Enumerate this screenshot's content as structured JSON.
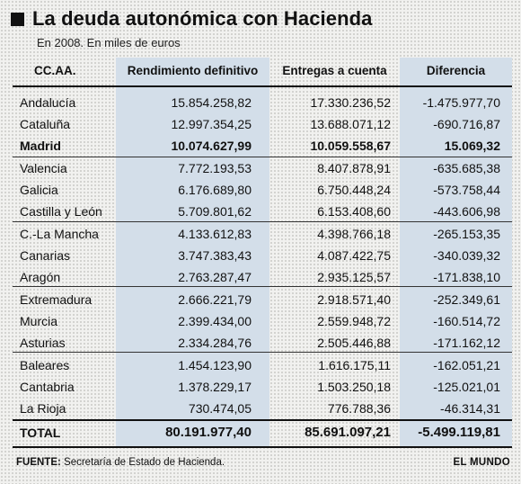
{
  "header": {
    "title": "La deuda autonómica con Hacienda",
    "subtitle": "En 2008. En miles de euros"
  },
  "columns": {
    "region": "CC.AA.",
    "rendimiento": "Rendimiento definitivo",
    "entregas": "Entregas a cuenta",
    "diferencia": "Diferencia"
  },
  "chart_data": {
    "type": "table",
    "title": "La deuda autonómica con Hacienda",
    "subtitle": "En 2008. En miles de euros",
    "columns": [
      "CC.AA.",
      "Rendimiento definitivo",
      "Entregas a cuenta",
      "Diferencia"
    ],
    "rows": [
      {
        "region": "Andalucía",
        "rendimiento": "15.854.258,82",
        "entregas": "17.330.236,52",
        "diferencia": "-1.475.977,70"
      },
      {
        "region": "Cataluña",
        "rendimiento": "12.997.354,25",
        "entregas": "13.688.071,12",
        "diferencia": "-690.716,87"
      },
      {
        "region": "Madrid",
        "rendimiento": "10.074.627,99",
        "entregas": "10.059.558,67",
        "diferencia": "15.069,32"
      },
      {
        "region": "Valencia",
        "rendimiento": "7.772.193,53",
        "entregas": "8.407.878,91",
        "diferencia": "-635.685,38"
      },
      {
        "region": "Galicia",
        "rendimiento": "6.176.689,80",
        "entregas": "6.750.448,24",
        "diferencia": "-573.758,44"
      },
      {
        "region": "Castilla y León",
        "rendimiento": "5.709.801,62",
        "entregas": "6.153.408,60",
        "diferencia": "-443.606,98"
      },
      {
        "region": "C.-La Mancha",
        "rendimiento": "4.133.612,83",
        "entregas": "4.398.766,18",
        "diferencia": "-265.153,35"
      },
      {
        "region": "Canarias",
        "rendimiento": "3.747.383,43",
        "entregas": "4.087.422,75",
        "diferencia": "-340.039,32"
      },
      {
        "region": "Aragón",
        "rendimiento": "2.763.287,47",
        "entregas": "2.935.125,57",
        "diferencia": "-171.838,10"
      },
      {
        "region": "Extremadura",
        "rendimiento": "2.666.221,79",
        "entregas": "2.918.571,40",
        "diferencia": "-252.349,61"
      },
      {
        "region": "Murcia",
        "rendimiento": "2.399.434,00",
        "entregas": "2.559.948,72",
        "diferencia": "-160.514,72"
      },
      {
        "region": "Asturias",
        "rendimiento": "2.334.284,76",
        "entregas": "2.505.446,88",
        "diferencia": "-171.162,12"
      },
      {
        "region": "Baleares",
        "rendimiento": "1.454.123,90",
        "entregas": "1.616.175,11",
        "diferencia": "-162.051,21"
      },
      {
        "region": "Cantabria",
        "rendimiento": "1.378.229,17",
        "entregas": "1.503.250,18",
        "diferencia": "-125.021,01"
      },
      {
        "region": "La Rioja",
        "rendimiento": "730.474,05",
        "entregas": "776.788,36",
        "diferencia": "-46.314,31"
      }
    ],
    "total": {
      "region": "TOTAL",
      "rendimiento": "80.191.977,40",
      "entregas": "85.691.097,21",
      "diferencia": "-5.499.119,81"
    },
    "highlighted_region": "Madrid"
  },
  "footer": {
    "source_label": "FUENTE:",
    "source_text": " Secretaría de Estado de Hacienda.",
    "brand": "EL MUNDO"
  }
}
